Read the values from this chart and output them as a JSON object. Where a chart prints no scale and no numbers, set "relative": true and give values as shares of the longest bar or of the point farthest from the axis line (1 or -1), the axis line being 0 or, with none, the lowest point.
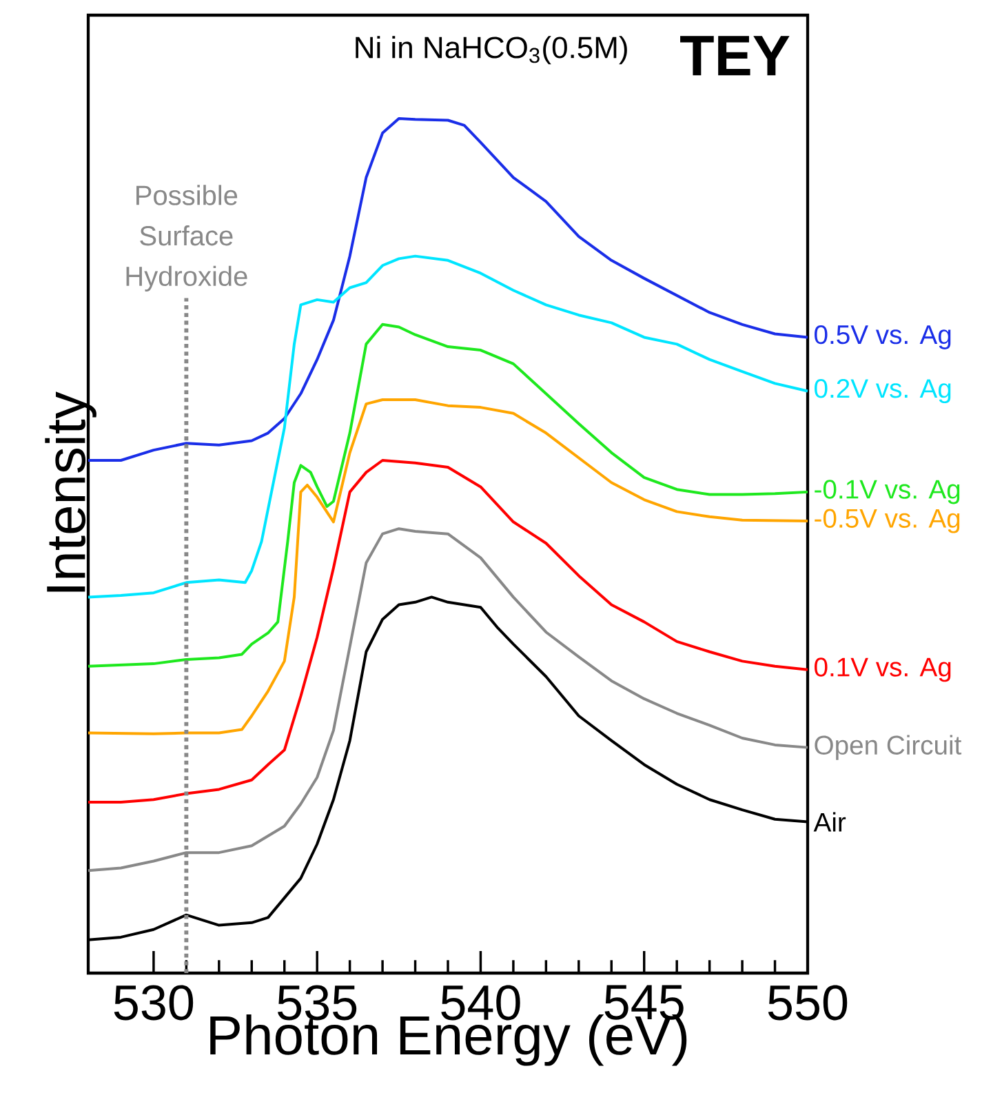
{
  "chart_data": {
    "type": "line",
    "title": "Ni in NaHCO$_{3}$(0.5M)",
    "xlabel": "Photon Energy (eV)",
    "ylabel": "Intensity",
    "relative": true,
    "legend": false,
    "tick_labels": "x",
    "xlim": [
      528,
      550
    ],
    "xticks": [
      530,
      535,
      540,
      545,
      550
    ],
    "annotations": [
      "TEY"
    ],
    "ref_lines": [
      {
        "axis": "x",
        "value": 531,
        "label": "Possible Surface Hydroxide",
        "color": "#888888",
        "line_style": "dotted"
      }
    ],
    "series": [
      {
        "name": "0.5V vs. Ag",
        "color": "#1a2ee8",
        "x": [
          528,
          529,
          530,
          531,
          532,
          533,
          533.5,
          534,
          534.5,
          535,
          535.5,
          536,
          536.5,
          537,
          537.5,
          538,
          539,
          539.5,
          540,
          541,
          542,
          543,
          544,
          545,
          546,
          547,
          548,
          549,
          550
        ],
        "values": [
          0.6,
          0.6,
          0.612,
          0.62,
          0.618,
          0.623,
          0.632,
          0.649,
          0.678,
          0.718,
          0.764,
          0.839,
          0.931,
          0.983,
          1.0,
          0.999,
          0.998,
          0.992,
          0.972,
          0.931,
          0.903,
          0.862,
          0.834,
          0.813,
          0.793,
          0.773,
          0.759,
          0.748,
          0.744
        ]
      },
      {
        "name": "0.2V vs. Ag",
        "color": "#00e5ff",
        "x": [
          528,
          529,
          530,
          531,
          532,
          532.8,
          533,
          533.3,
          534,
          534.3,
          534.5,
          535,
          535.5,
          536,
          536.5,
          537,
          537.5,
          538,
          539,
          540,
          541,
          542,
          543,
          544,
          545,
          546,
          547,
          548,
          549,
          550
        ],
        "values": [
          0.44,
          0.442,
          0.445,
          0.457,
          0.46,
          0.457,
          0.471,
          0.505,
          0.638,
          0.736,
          0.782,
          0.788,
          0.785,
          0.802,
          0.808,
          0.828,
          0.836,
          0.839,
          0.834,
          0.819,
          0.799,
          0.782,
          0.77,
          0.761,
          0.744,
          0.736,
          0.718,
          0.704,
          0.69,
          0.681
        ]
      },
      {
        "name": "-0.1V vs. Ag",
        "color": "#1ee81e",
        "x": [
          528,
          530,
          531,
          532,
          532.7,
          533,
          533.5,
          533.8,
          534.1,
          534.3,
          534.5,
          534.8,
          535,
          535.3,
          535.5,
          536,
          536.5,
          537,
          537.5,
          538,
          539,
          540,
          541,
          542,
          543,
          544,
          545,
          546,
          547,
          548,
          549,
          550
        ],
        "values": [
          0.359,
          0.362,
          0.367,
          0.369,
          0.373,
          0.385,
          0.398,
          0.411,
          0.505,
          0.574,
          0.594,
          0.586,
          0.569,
          0.546,
          0.552,
          0.632,
          0.736,
          0.759,
          0.756,
          0.747,
          0.733,
          0.729,
          0.713,
          0.678,
          0.643,
          0.609,
          0.58,
          0.566,
          0.56,
          0.56,
          0.561,
          0.563
        ]
      },
      {
        "name": "-0.5V vs. Ag",
        "color": "#ffa500",
        "x": [
          528,
          530,
          531,
          532,
          532.7,
          533,
          533.5,
          534,
          534.3,
          534.5,
          534.7,
          535,
          535.5,
          536,
          536.5,
          537,
          538,
          539,
          540,
          541,
          542,
          543,
          544,
          545,
          546,
          547,
          548,
          550
        ],
        "values": [
          0.281,
          0.28,
          0.281,
          0.281,
          0.285,
          0.301,
          0.33,
          0.365,
          0.44,
          0.563,
          0.571,
          0.557,
          0.528,
          0.609,
          0.666,
          0.671,
          0.671,
          0.664,
          0.662,
          0.655,
          0.632,
          0.603,
          0.574,
          0.554,
          0.54,
          0.534,
          0.53,
          0.529
        ]
      },
      {
        "name": "0.1V vs. Ag",
        "color": "#ff0000",
        "x": [
          528,
          529,
          530,
          531,
          532,
          533,
          533.5,
          534,
          534.5,
          535,
          535.5,
          536,
          536.5,
          537,
          538,
          539,
          540,
          541,
          542,
          543,
          544,
          545,
          546,
          547,
          548,
          549,
          550
        ],
        "values": [
          0.2,
          0.2,
          0.203,
          0.21,
          0.215,
          0.226,
          0.244,
          0.261,
          0.324,
          0.393,
          0.474,
          0.563,
          0.586,
          0.6,
          0.597,
          0.592,
          0.569,
          0.528,
          0.503,
          0.465,
          0.431,
          0.411,
          0.388,
          0.376,
          0.365,
          0.359,
          0.355
        ]
      },
      {
        "name": "Open Circuit",
        "color": "#888888",
        "x": [
          528,
          529,
          530,
          531,
          532,
          533,
          534,
          534.5,
          535,
          535.5,
          536,
          536.5,
          537,
          537.5,
          538,
          539,
          540,
          541,
          542,
          543,
          544,
          545,
          546,
          547,
          548,
          549,
          550
        ],
        "values": [
          0.12,
          0.123,
          0.131,
          0.141,
          0.141,
          0.149,
          0.172,
          0.198,
          0.229,
          0.284,
          0.382,
          0.48,
          0.514,
          0.52,
          0.517,
          0.514,
          0.486,
          0.44,
          0.399,
          0.37,
          0.342,
          0.321,
          0.304,
          0.29,
          0.275,
          0.267,
          0.264
        ]
      },
      {
        "name": "Air",
        "color": "#000000",
        "x": [
          528,
          529,
          530,
          531,
          532,
          533,
          533.5,
          534,
          534.5,
          535,
          535.5,
          536,
          536.5,
          537,
          537.5,
          538,
          538.5,
          539,
          540,
          540.5,
          541,
          542,
          543,
          544,
          545,
          546,
          547,
          548,
          549,
          550
        ],
        "values": [
          0.039,
          0.042,
          0.051,
          0.068,
          0.056,
          0.059,
          0.065,
          0.088,
          0.111,
          0.151,
          0.203,
          0.272,
          0.376,
          0.414,
          0.431,
          0.434,
          0.44,
          0.434,
          0.428,
          0.405,
          0.385,
          0.347,
          0.301,
          0.272,
          0.244,
          0.221,
          0.203,
          0.191,
          0.18,
          0.177
        ]
      }
    ]
  }
}
